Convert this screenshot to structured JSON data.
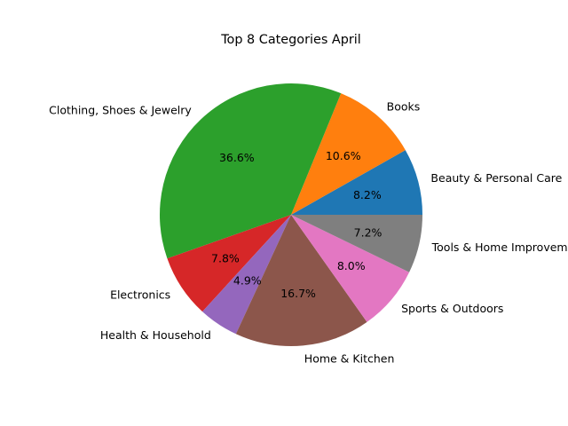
{
  "chart_data": {
    "type": "pie",
    "title": "Top 8 Categories April",
    "start_angle_deg": 0,
    "direction": "counterclockwise",
    "slices": [
      {
        "label": "Beauty & Personal Care",
        "value": 8.2,
        "pct_label": "8.2%",
        "color": "#1f77b4"
      },
      {
        "label": "Books",
        "value": 10.6,
        "pct_label": "10.6%",
        "color": "#ff7f0e"
      },
      {
        "label": "Clothing, Shoes & Jewelry",
        "value": 36.6,
        "pct_label": "36.6%",
        "color": "#2ca02c"
      },
      {
        "label": "Electronics",
        "value": 7.8,
        "pct_label": "7.8%",
        "color": "#d62728"
      },
      {
        "label": "Health & Household",
        "value": 4.9,
        "pct_label": "4.9%",
        "color": "#9467bd"
      },
      {
        "label": "Home & Kitchen",
        "value": 16.7,
        "pct_label": "16.7%",
        "color": "#8c564b"
      },
      {
        "label": "Sports & Outdoors",
        "value": 8.0,
        "pct_label": "8.0%",
        "color": "#e377c2"
      },
      {
        "label": "Tools & Home Improvement",
        "value": 7.2,
        "pct_label": "7.2%",
        "color": "#7f7f7f"
      }
    ]
  }
}
